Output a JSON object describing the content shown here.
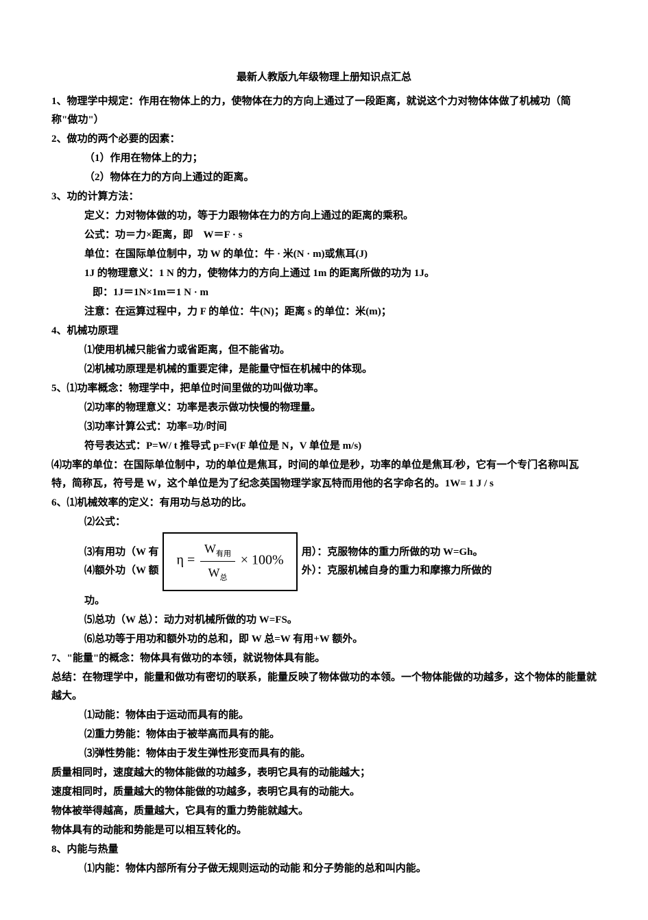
{
  "title": "最新人教版九年级物理上册知识点汇总",
  "s1": "1、物理学中规定：作用在物体上的力，使物体在力的方向上通过了一段距离，就说这个力对物体体做了机械功（简称\"做功\"）",
  "s2": {
    "head": "2、做功的两个必要的因素：",
    "p1": "（1）作用在物体上的力；",
    "p2": "（2）物体在力的方向上通过的距离。"
  },
  "s3": {
    "head": "3、功的计算方法：",
    "p1": "定义：力对物体做的功，等于力跟物体在力的方向上通过的距离的乘积。",
    "p2": "公式：功＝力×距离，即　W＝F · s",
    "p3": "单位：在国际单位制中，功 W 的单位：牛 · 米(N · m)或焦耳(J)",
    "p4": "1J 的物理意义：1 N 的力，使物体力的方向上通过 1m 的距离所做的功为 1J。",
    "p5": "即：1J＝1N×1m＝1 N · m",
    "p6": "注意：在运算过程中，力 F 的单位：牛(N)；距离 s 的单位：米(m)；"
  },
  "s4": {
    "head": "4、机械功原理",
    "p1": "⑴使用机械只能省力或省距离，但不能省功。",
    "p2": "⑵机械功原理是机械的重要定律，是能量守恒在机械中的体现。"
  },
  "s5": {
    "p1": "5、⑴功率概念：物理学中，把单位时间里做的功叫做功率。",
    "p2": "⑵功率的物理意义：功率是表示做功快慢的物理量。",
    "p3": "⑶功率计算公式：功率=功/时间",
    "p4": "符号表达式：P=W/ t 推导式 p=Fv(F 单位是 N，V 单位是 m/s)",
    "p5": "⑷功率的单位：在国际单位制中，功的单位是焦耳，时间的单位是秒，功率的单位是焦耳/秒，它有一个专门名称叫瓦特，简称瓦，符号是 W，这个单位是为了纪念英国物理学家瓦特而用他的名字命名的。1W= 1 J / s"
  },
  "s6": {
    "p1": "6、⑴机械效率的定义：有用功与总功的比。",
    "p2": "⑵公式：",
    "p3a": "⑶有用功（W 有",
    "p3b": "用）：克服物体的重力所做的功 W=Gh。",
    "p4a": "⑷额外功（W 额",
    "p4b": "外）：克服机械自身的重力和摩擦力所做的",
    "p4c": "功。",
    "p5": "⑸总功（W 总）：动力对机械所做的功 W=FS。",
    "p6": "⑹总功等于用功和额外功的总和，即 W 总=W 有用+W 额外。",
    "formula": {
      "eta": "η =",
      "num": "W有用",
      "den": "W总",
      "suffix": "× 100%"
    }
  },
  "s7": {
    "head": "7、\"能量\"的概念：物体具有做功的本领，就说物体具有能。",
    "p1": "总结：在物理学中，能量和做功有密切的联系，能量反映了物体做功的本领。一个物体能做的功越多，这个物体的能量就越大。",
    "p2": "⑴动能：物体由于运动而具有的能。",
    "p3": "⑵重力势能：物体由于被举高而具有的能。",
    "p4": "⑶弹性势能：物体由于发生弹性形变而具有的能。",
    "p5": "质量相同时，速度越大的物体能做的功越多，表明它具有的动能越大；",
    "p6": "速度相同时，质量越大的物体能做的功越多，表明它具有的动能大。",
    "p7": "物体被举得越高，质量越大，它具有的重力势能就越大。",
    "p8": "物体具有的动能和势能是可以相互转化的。"
  },
  "s8": {
    "head": "8、内能与热量",
    "p1": "⑴内能：物体内部所有分子做无规则运动的动能  和分子势能的总和叫内能。"
  }
}
